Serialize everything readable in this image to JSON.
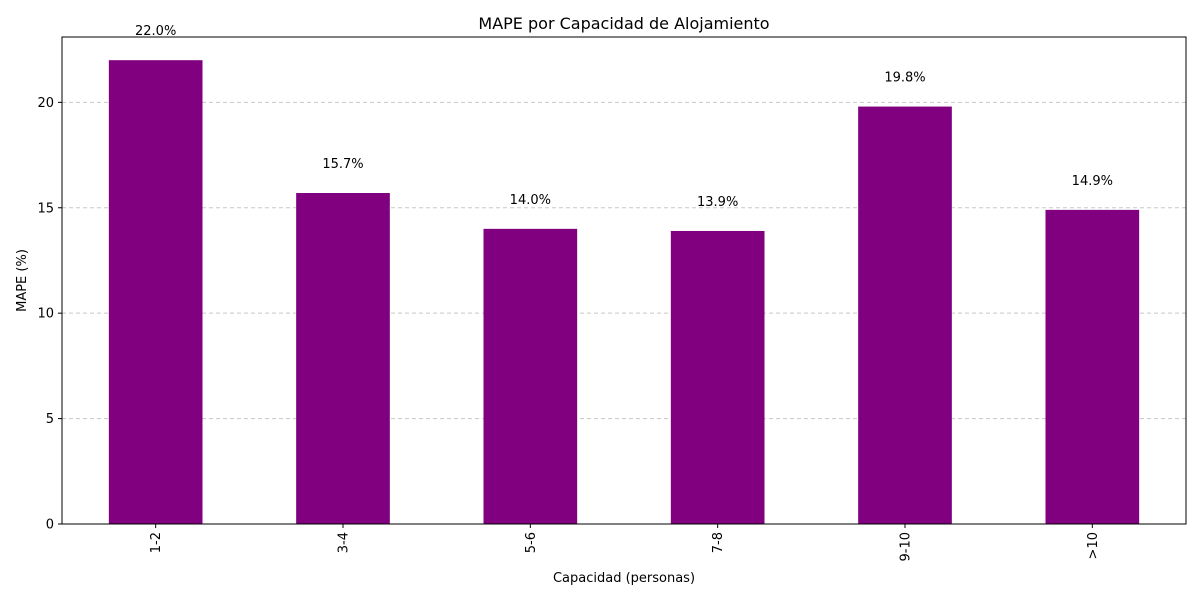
{
  "chart_data": {
    "type": "bar",
    "title": "MAPE por Capacidad de Alojamiento",
    "xlabel": "Capacidad (personas)",
    "ylabel": "MAPE (%)",
    "categories": [
      "1-2",
      "3-4",
      "5-6",
      "7-8",
      "9-10",
      ">10"
    ],
    "values": [
      22.0,
      15.7,
      14.0,
      13.9,
      19.8,
      14.9
    ],
    "value_labels": [
      "22.0%",
      "15.7%",
      "14.0%",
      "13.9%",
      "19.8%",
      "14.9%"
    ],
    "ylim": [
      0,
      23.1
    ],
    "yticks": [
      0,
      5,
      10,
      15,
      20
    ],
    "ytick_labels": [
      "0",
      "5",
      "10",
      "15",
      "20"
    ],
    "grid": "y-dashed",
    "bar_color": "#800080",
    "grid_color": "#c8c8c8",
    "xtick_rotation": 90
  }
}
